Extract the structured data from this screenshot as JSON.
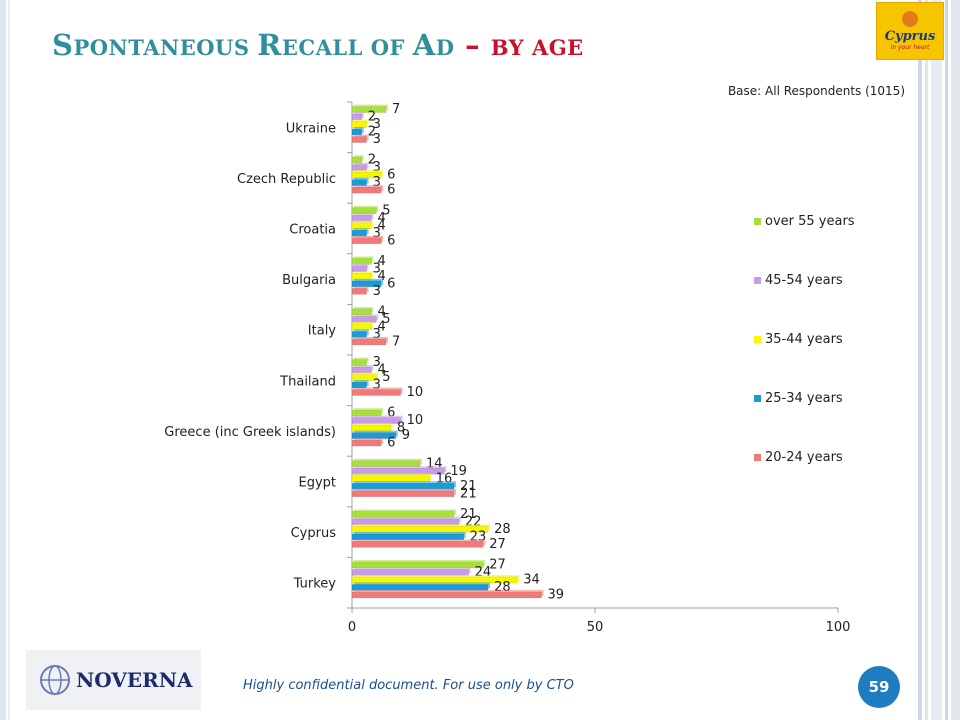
{
  "slide": {
    "title_parts": {
      "s": "S",
      "pontaneous": "PONTANEOUS ",
      "r": "R",
      "ecall": "ECALL OF ",
      "a": "A",
      "d": "D",
      "dash": "–",
      "by_age": "BY AGE"
    },
    "base_note": "Base: All Respondents (1015)",
    "logo_text": "Cyprus",
    "logo_sub": "in your heart",
    "footer_logo": "NOVERNA",
    "footer_note": "Highly confidential document. For use only by CTO",
    "page_number": "59"
  },
  "colors": {
    "title": "#2f8f9d",
    "accent_red": "#c8102e",
    "page_badge": "#1f7cc1"
  },
  "chart_data": {
    "type": "bar",
    "orientation": "horizontal",
    "categories": [
      "Ukraine",
      "Czech Republic",
      "Croatia",
      "Bulgaria",
      "Italy",
      "Thailand",
      "Greece (inc Greek islands)",
      "Egypt",
      "Cyprus",
      "Turkey"
    ],
    "series": [
      {
        "name": "over 55 years",
        "color": "#a8e03a",
        "values": [
          7,
          2,
          5,
          4,
          4,
          3,
          6,
          14,
          21,
          27
        ]
      },
      {
        "name": "45-54 years",
        "color": "#c79be8",
        "values": [
          2,
          3,
          4,
          3,
          5,
          4,
          10,
          19,
          22,
          24
        ]
      },
      {
        "name": "35-44 years",
        "color": "#f7f700",
        "values": [
          3,
          6,
          4,
          4,
          4,
          5,
          8,
          16,
          28,
          34
        ]
      },
      {
        "name": "25-34 years",
        "color": "#1a9ad6",
        "values": [
          2,
          3,
          3,
          6,
          3,
          3,
          9,
          21,
          23,
          28
        ]
      },
      {
        "name": "20-24 years",
        "color": "#f07a7a",
        "values": [
          3,
          6,
          6,
          3,
          7,
          10,
          6,
          21,
          27,
          39
        ]
      }
    ],
    "xlim": [
      0,
      100
    ],
    "xticks": [
      0,
      50,
      100
    ],
    "grid": false,
    "legend_position": "right"
  }
}
